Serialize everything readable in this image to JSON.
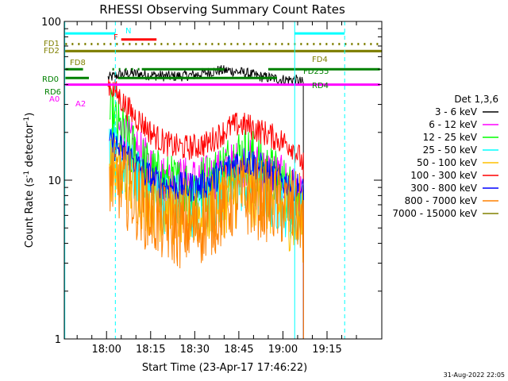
{
  "chart_data": {
    "type": "line",
    "title": "RHESSI Observing Summary Count Rates",
    "xlabel": "Start Time (23-Apr-17 17:46:22)",
    "ylabel_main": "Count Rate (s",
    "ylabel_exp": "-1",
    "ylabel_mid": " detector",
    "ylabel_exp2": "-1",
    "ylabel_end": ")",
    "footer_date": "31-Aug-2022 22:05",
    "yscale": "log",
    "ylim": [
      1,
      100
    ],
    "xlim_minutes": [
      -14.37,
      93.63
    ],
    "x_tick_labels": [
      {
        "t": 0,
        "label": "18:00"
      },
      {
        "t": 15,
        "label": "18:15"
      },
      {
        "t": 30,
        "label": "18:30"
      },
      {
        "t": 45,
        "label": "18:45"
      },
      {
        "t": 60,
        "label": "19:00"
      },
      {
        "t": 75,
        "label": "19:15"
      }
    ],
    "y_tick_labels": [
      {
        "v": 1,
        "label": "1"
      },
      {
        "v": 10,
        "label": "10"
      },
      {
        "v": 100,
        "label": "100"
      }
    ],
    "legend_title": "Det 1,3,6",
    "legend_position": "right",
    "series": [
      {
        "name": "3 - 6 keV",
        "color": "#000000",
        "x": [
          0.5,
          4,
          8,
          15,
          22,
          30,
          38,
          42,
          45,
          48,
          52,
          56,
          60,
          64,
          67
        ],
        "y": [
          44,
          46,
          47,
          46,
          45,
          46,
          49,
          49,
          48,
          47,
          45,
          44,
          43,
          43,
          41
        ]
      },
      {
        "name": "6 - 12 keV",
        "color": "#ff00ff",
        "x": [
          4,
          8,
          12,
          16,
          20,
          26,
          32,
          36,
          40,
          44,
          48,
          52,
          56,
          60,
          63,
          67
        ],
        "y": [
          21,
          17,
          14,
          11.5,
          10,
          10,
          10,
          10.5,
          11.5,
          12.5,
          13,
          12,
          11,
          10,
          9,
          7
        ]
      },
      {
        "name": "12 - 25 keV",
        "color": "#00ff00",
        "x": [
          1,
          4,
          8,
          12,
          16,
          20,
          26,
          32,
          36,
          40,
          44,
          47,
          50,
          54,
          58,
          62,
          67
        ],
        "y": [
          25,
          21,
          16,
          12.5,
          10.5,
          9.5,
          9,
          9.2,
          10,
          12,
          14,
          14.5,
          13.5,
          11.5,
          10,
          8.5,
          6.5
        ]
      },
      {
        "name": "25 - 50 keV",
        "color": "#00ffff",
        "x": [
          1,
          4,
          8,
          12,
          16,
          20,
          26,
          32,
          36,
          40,
          44,
          47,
          50,
          54,
          58,
          62,
          67
        ],
        "y": [
          15,
          13,
          11,
          9,
          8,
          7.3,
          7,
          7.1,
          7.6,
          8.5,
          9.7,
          10,
          9.5,
          8.5,
          7.6,
          6.8,
          5.5
        ]
      },
      {
        "name": "50 - 100 keV",
        "color": "#ffc000",
        "x": [
          1,
          4,
          8,
          12,
          16,
          20,
          26,
          32,
          36,
          40,
          44,
          47,
          50,
          54,
          58,
          62,
          67
        ],
        "y": [
          12.5,
          11,
          9.5,
          8,
          7,
          6.5,
          6.2,
          6.3,
          6.7,
          7.3,
          8.2,
          8.5,
          8.2,
          7.5,
          6.8,
          6,
          5
        ]
      },
      {
        "name": "100 - 300 keV",
        "color": "#ff0000",
        "x": [
          0.5,
          3,
          6,
          9,
          12,
          15,
          18,
          22,
          26,
          30,
          34,
          38,
          42,
          45,
          48,
          52,
          56,
          60,
          63,
          66,
          67
        ],
        "y": [
          41,
          36,
          30,
          26,
          23,
          20,
          18,
          16.5,
          16,
          16.2,
          17,
          19,
          21.5,
          22.5,
          22,
          20.5,
          19,
          17.5,
          16.5,
          13.5,
          12.5
        ]
      },
      {
        "name": "300 - 800 keV",
        "color": "#0000ff",
        "x": [
          1,
          4,
          8,
          12,
          16,
          20,
          26,
          32,
          36,
          40,
          44,
          47,
          50,
          54,
          58,
          62,
          65,
          67
        ],
        "y": [
          17,
          16,
          14,
          11.5,
          10,
          9.3,
          9,
          9.2,
          10,
          11.5,
          13,
          13.3,
          12.8,
          11.5,
          10.3,
          9.5,
          9,
          8.3
        ]
      },
      {
        "name": "800 - 7000 keV",
        "color": "#ff8000",
        "x": [
          1,
          4,
          8,
          12,
          16,
          20,
          26,
          32,
          36,
          40,
          44,
          47,
          50,
          54,
          58,
          62,
          65,
          67
        ],
        "y": [
          10.5,
          10,
          8.5,
          7,
          6,
          5.3,
          5,
          5.3,
          6,
          7,
          7.8,
          8,
          7.8,
          7.5,
          7,
          6.7,
          6.2,
          5.8
        ]
      },
      {
        "name": "7000 - 15000 keV",
        "color": "#808000",
        "x": [
          -14.37,
          93.63
        ],
        "y": [
          65,
          65
        ]
      }
    ],
    "flags": [
      {
        "label": "FD1",
        "color": "#808000",
        "level": 72
      },
      {
        "label": "FD2",
        "color": "#808000",
        "level": 65
      },
      {
        "label": "FD8",
        "color": "#808000",
        "level": 56
      },
      {
        "label": "RD0",
        "color": "#008000",
        "level": 50
      },
      {
        "label": "RD6",
        "color": "#008000",
        "level": 44
      },
      {
        "label": "A0",
        "color": "#ff00ff",
        "level": 40
      },
      {
        "label": "A2",
        "color": "#ff00ff",
        "level": 37
      },
      {
        "label": "N",
        "color": "#00ffff",
        "level": 84
      },
      {
        "label": "F",
        "color": "#ff0000",
        "level": 77
      },
      {
        "label": "FD4",
        "color": "#808000",
        "level": 60
      },
      {
        "label": "FD255",
        "color": "#008000",
        "level": 53
      },
      {
        "label": "RD4",
        "color": "#008000",
        "level": 47
      }
    ]
  }
}
